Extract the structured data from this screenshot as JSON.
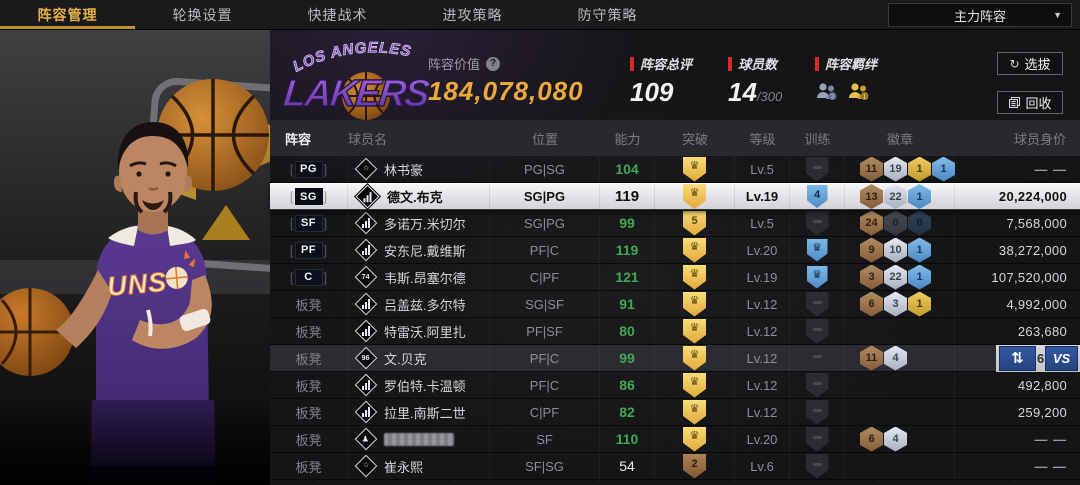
{
  "tabs": [
    {
      "name": "lineup-management",
      "label": "阵容管理",
      "active": true
    },
    {
      "name": "rotation-settings",
      "label": "轮换设置",
      "active": false
    },
    {
      "name": "quick-tactics",
      "label": "快捷战术",
      "active": false
    },
    {
      "name": "offense-strategy",
      "label": "进攻策略",
      "active": false
    },
    {
      "name": "defense-strategy",
      "label": "防守策略",
      "active": false
    }
  ],
  "lineup_dropdown": {
    "value": "主力阵容"
  },
  "panel": {
    "logo_top": "LOS ANGELES",
    "logo_main": "LAKERS",
    "value_label": "阵容价值",
    "value": "184,078,080",
    "rating_label": "阵容总评",
    "rating": "109",
    "players_label": "球员数",
    "players_count": "14",
    "players_max": "/300",
    "bonds_label": "阵容羁绊",
    "select_button": "选拔",
    "recycle_button": "回收"
  },
  "table": {
    "columns": [
      "阵容",
      "球员名",
      "位置",
      "能力",
      "突破",
      "等级",
      "训练",
      "徽章",
      "球员身价"
    ],
    "rows": [
      {
        "slot": "PG",
        "bench": false,
        "icon": "star",
        "name": "林书豪",
        "masked": false,
        "pos": "PG|SG",
        "ability": "104",
        "ability_style": "green",
        "break_glyph": "crown",
        "break_style": "gold",
        "level": "Lv.5",
        "train_glyph": "minus",
        "train_style": "dark",
        "badges": [
          [
            "11",
            "bronze"
          ],
          [
            "19",
            "silver"
          ],
          [
            "1",
            "gold"
          ],
          [
            "1",
            "blue"
          ]
        ],
        "price": "--",
        "selected": false,
        "hovered": false
      },
      {
        "slot": "SG",
        "bench": false,
        "icon": "bars",
        "name": "德文.布克",
        "masked": false,
        "pos": "SG|PG",
        "ability": "119",
        "ability_style": "green",
        "break_glyph": "crown",
        "break_style": "gold",
        "level": "Lv.19",
        "train_glyph": "4",
        "train_style": "blue",
        "badges": [
          [
            "13",
            "bronze"
          ],
          [
            "22",
            "silver"
          ],
          [
            "1",
            "blue"
          ]
        ],
        "price": "20,224,000",
        "selected": true,
        "hovered": false
      },
      {
        "slot": "SF",
        "bench": false,
        "icon": "bars",
        "name": "多诺万.米切尔",
        "masked": false,
        "pos": "SG|PG",
        "ability": "99",
        "ability_style": "green",
        "break_glyph": "5",
        "break_style": "gold",
        "level": "Lv.5",
        "train_glyph": "minus",
        "train_style": "dark",
        "badges": [
          [
            "24",
            "bronze"
          ],
          [
            "0",
            "graydark"
          ],
          [
            "0",
            "navydark"
          ]
        ],
        "price": "7,568,000",
        "selected": false,
        "hovered": false
      },
      {
        "slot": "PF",
        "bench": false,
        "icon": "bars",
        "name": "安东尼.戴维斯",
        "masked": false,
        "pos": "PF|C",
        "ability": "119",
        "ability_style": "green",
        "break_glyph": "crown",
        "break_style": "gold",
        "level": "Lv.20",
        "train_glyph": "crown",
        "train_style": "blue",
        "badges": [
          [
            "9",
            "bronze"
          ],
          [
            "10",
            "silver"
          ],
          [
            "1",
            "blue"
          ]
        ],
        "price": "38,272,000",
        "selected": false,
        "hovered": false
      },
      {
        "slot": "C",
        "bench": false,
        "icon": "num:74",
        "name": "韦斯.昂塞尔德",
        "masked": false,
        "pos": "C|PF",
        "ability": "121",
        "ability_style": "green",
        "break_glyph": "crown",
        "break_style": "gold",
        "level": "Lv.19",
        "train_glyph": "crown",
        "train_style": "blue",
        "badges": [
          [
            "3",
            "bronze"
          ],
          [
            "22",
            "silver"
          ],
          [
            "1",
            "blue"
          ]
        ],
        "price": "107,520,000",
        "selected": false,
        "hovered": false
      },
      {
        "slot": "板凳",
        "bench": true,
        "icon": "bars",
        "name": "吕盖兹.多尔特",
        "masked": false,
        "pos": "SG|SF",
        "ability": "91",
        "ability_style": "green",
        "break_glyph": "crown",
        "break_style": "gold",
        "level": "Lv.12",
        "train_glyph": "minus",
        "train_style": "dark",
        "badges": [
          [
            "6",
            "bronze"
          ],
          [
            "3",
            "silver"
          ],
          [
            "1",
            "gold"
          ]
        ],
        "price": "4,992,000",
        "selected": false,
        "hovered": false
      },
      {
        "slot": "板凳",
        "bench": true,
        "icon": "bars",
        "name": "特雷沃.阿里扎",
        "masked": false,
        "pos": "PF|SF",
        "ability": "80",
        "ability_style": "green",
        "break_glyph": "crown",
        "break_style": "gold",
        "level": "Lv.12",
        "train_glyph": "minus",
        "train_style": "dark",
        "badges": [],
        "price": "263,680",
        "selected": false,
        "hovered": false
      },
      {
        "slot": "板凳",
        "bench": true,
        "icon": "num:96",
        "name": "文.贝克",
        "masked": false,
        "pos": "PF|C",
        "ability": "99",
        "ability_style": "green",
        "break_glyph": "crown",
        "break_style": "gold",
        "level": "Lv.12",
        "train_glyph": "minus",
        "train_style": "dark",
        "badges": [
          [
            "11",
            "bronze"
          ],
          [
            "4",
            "silver"
          ]
        ],
        "price": "",
        "selected": false,
        "hovered": true
      },
      {
        "slot": "板凳",
        "bench": true,
        "icon": "bars",
        "name": "罗伯特.卡温顿",
        "masked": false,
        "pos": "PF|C",
        "ability": "86",
        "ability_style": "green",
        "break_glyph": "crown",
        "break_style": "gold",
        "level": "Lv.12",
        "train_glyph": "minus",
        "train_style": "dark",
        "badges": [],
        "price": "492,800",
        "selected": false,
        "hovered": false
      },
      {
        "slot": "板凳",
        "bench": true,
        "icon": "bars",
        "name": "拉里.南斯二世",
        "masked": false,
        "pos": "C|PF",
        "ability": "82",
        "ability_style": "green",
        "break_glyph": "crown",
        "break_style": "gold",
        "level": "Lv.12",
        "train_glyph": "minus",
        "train_style": "dark",
        "badges": [],
        "price": "259,200",
        "selected": false,
        "hovered": false
      },
      {
        "slot": "板凳",
        "bench": true,
        "icon": "person",
        "name": "",
        "masked": true,
        "pos": "SF",
        "ability": "110",
        "ability_style": "green",
        "break_glyph": "crown",
        "break_style": "gold",
        "level": "Lv.20",
        "train_glyph": "minus",
        "train_style": "dark",
        "badges": [
          [
            "6",
            "bronze"
          ],
          [
            "4",
            "silver"
          ]
        ],
        "price": "--",
        "selected": false,
        "hovered": false
      },
      {
        "slot": "板凳",
        "bench": true,
        "icon": "star",
        "name": "崔永熙",
        "masked": false,
        "pos": "SF|SG",
        "ability": "54",
        "ability_style": "white",
        "break_glyph": "2",
        "break_style": "bronze",
        "level": "Lv.6",
        "train_glyph": "minus",
        "train_style": "dark",
        "badges": [],
        "price": "--",
        "selected": false,
        "hovered": false
      }
    ]
  },
  "row_actions": {
    "partial_price": "6",
    "vs_label": "VS"
  },
  "colors": {
    "accent_gold": "#e8b345",
    "accent_red": "#d42a2a",
    "ability_green": "#43a854",
    "action_blue": "#2b4a93",
    "badge_bronze": "#a8825e",
    "badge_silver": "#c8d0dc",
    "badge_gold": "#d9b84a",
    "badge_blue": "#5b9bd5"
  }
}
